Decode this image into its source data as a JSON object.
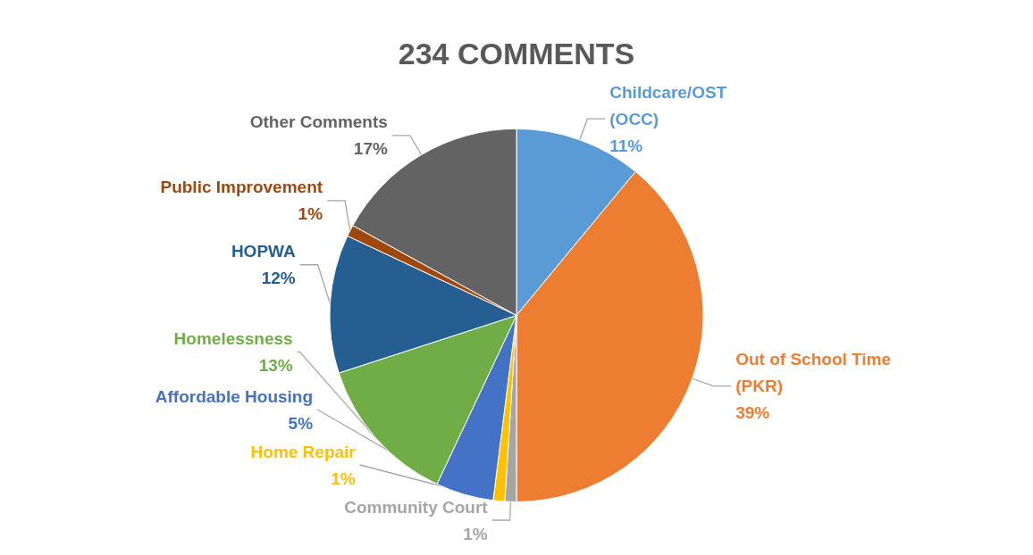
{
  "chart_data": {
    "type": "pie",
    "title": "234 COMMENTS",
    "categories": [
      "Childcare/OST (OCC)",
      "Out of School Time (PKR)",
      "Community Court",
      "Home Repair",
      "Affordable Housing",
      "Homelessness",
      "HOPWA",
      "Public Improvement",
      "Other Comments"
    ],
    "values": [
      11,
      39,
      1,
      1,
      5,
      13,
      12,
      1,
      17
    ],
    "value_labels": [
      "11%",
      "39%",
      "1%",
      "1%",
      "5%",
      "13%",
      "12%",
      "1%",
      "17%"
    ],
    "colors": [
      "#5b9bd5",
      "#ed7d31",
      "#a5a5a5",
      "#ffc000",
      "#4472c4",
      "#70ad47",
      "#255e91",
      "#9e480e",
      "#636363"
    ],
    "legend": false
  }
}
